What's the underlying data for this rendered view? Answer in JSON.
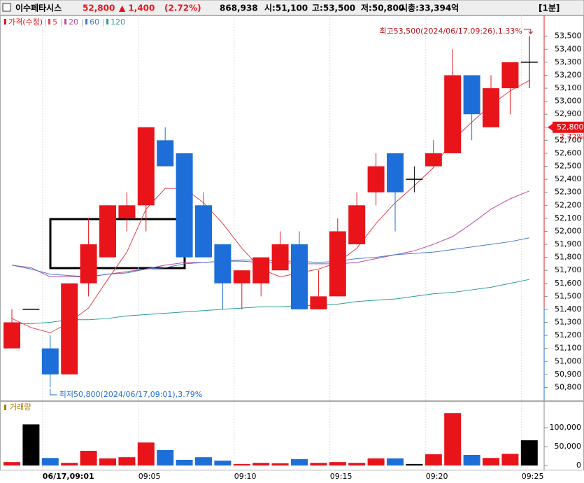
{
  "header": {
    "name": "이수페타시스",
    "price": "52,800",
    "change": "▲ 1,400",
    "change_pct": "(2.72%)",
    "volume": "868,938",
    "open": "시:51,100",
    "high": "고:53,500",
    "low": "저:50,800",
    "cap": "시총:33,394억",
    "interval": "[1분]"
  },
  "chart_data": [
    {
      "type": "candlestick",
      "name": "가격(수정)",
      "categories": [
        null,
        null,
        "06/17,09:01",
        null,
        null,
        null,
        null,
        "09:05",
        null,
        null,
        null,
        null,
        "09:10",
        null,
        null,
        null,
        null,
        "09:15",
        null,
        null,
        null,
        null,
        "09:20",
        null,
        null,
        null,
        null,
        "09:25"
      ],
      "open": [
        51100,
        51400,
        51100,
        50900,
        51600,
        51800,
        52100,
        52200,
        52700,
        52600,
        52200,
        51900,
        51600,
        51600,
        51700,
        51900,
        51400,
        51500,
        51900,
        52300,
        52600,
        52400,
        52500,
        52600,
        53200,
        52800,
        53100,
        53300
      ],
      "high": [
        51400,
        51400,
        51200,
        51600,
        52100,
        52200,
        52300,
        52800,
        52800,
        52600,
        52300,
        51900,
        51700,
        51800,
        52000,
        52000,
        51700,
        52100,
        52300,
        52600,
        52600,
        52500,
        52700,
        53400,
        53200,
        53200,
        53300,
        53500
      ],
      "low": [
        51100,
        51400,
        50800,
        50900,
        51500,
        51800,
        52000,
        52000,
        52500,
        51800,
        51800,
        51400,
        51400,
        51500,
        51700,
        51400,
        51400,
        51500,
        51900,
        52200,
        52000,
        52300,
        52500,
        52600,
        52700,
        52800,
        52900,
        53100
      ],
      "close": [
        51300,
        51400,
        50900,
        51600,
        51900,
        52200,
        52200,
        52800,
        52500,
        51800,
        51800,
        51600,
        51700,
        51800,
        51900,
        51400,
        51500,
        52000,
        52200,
        52500,
        52300,
        52400,
        52600,
        53200,
        52900,
        53100,
        53300,
        53300
      ],
      "up_color": "#e8141a",
      "down_color": "#1d6ed8",
      "flat_color": "#000000",
      "series": [
        {
          "name": "5",
          "color": "#e0404a",
          "values": [
            51330,
            51260,
            51220,
            51300,
            51410,
            51630,
            51840,
            52170,
            52330,
            52330,
            52220,
            52060,
            51870,
            51710,
            51650,
            51680,
            51710,
            51760,
            51870,
            52060,
            52220,
            52350,
            52490,
            52700,
            52840,
            52970,
            53080,
            53160
          ]
        },
        {
          "name": "20",
          "color": "#c04aa0",
          "values": [
            51740,
            51720,
            51650,
            51650,
            51650,
            51670,
            51690,
            51710,
            51740,
            51760,
            51760,
            51770,
            51770,
            51760,
            51760,
            51750,
            51750,
            51750,
            51760,
            51790,
            51820,
            51850,
            51900,
            51960,
            52060,
            52170,
            52250,
            52310
          ]
        },
        {
          "name": "60",
          "color": "#4a7ac8",
          "values": [
            51740,
            51710,
            51670,
            51660,
            51650,
            51670,
            51680,
            51710,
            51720,
            51750,
            51760,
            51770,
            51780,
            51780,
            51770,
            51770,
            51760,
            51770,
            51790,
            51800,
            51820,
            51830,
            51840,
            51860,
            51880,
            51900,
            51920,
            51950
          ]
        },
        {
          "name": "120",
          "color": "#2a9a9a",
          "values": [
            51290,
            51290,
            51300,
            51320,
            51320,
            51330,
            51350,
            51360,
            51370,
            51380,
            51390,
            51400,
            51410,
            51420,
            51420,
            51430,
            51430,
            51440,
            51460,
            51470,
            51480,
            51500,
            51520,
            51530,
            51550,
            51570,
            51600,
            51630
          ]
        }
      ],
      "annotations": [
        "최고53,500(2024/06/17,09:26),1.33%",
        "최저50,800(2024/06/17,09:01),3.79%"
      ],
      "price_marker": {
        "value": 52800,
        "label": "52,800",
        "change": "2.72%"
      },
      "ylim": [
        50700,
        53660
      ],
      "yticks": [
        {
          "value": 50800,
          "label": "50,800"
        },
        {
          "value": 50900,
          "label": "50,900"
        },
        {
          "value": 51000,
          "label": "51,000"
        },
        {
          "value": 51100,
          "label": "51,100"
        },
        {
          "value": 51200,
          "label": "51,200"
        },
        {
          "value": 51300,
          "label": "51,300"
        },
        {
          "value": 51400,
          "label": "51,400"
        },
        {
          "value": 51500,
          "label": "51,500"
        },
        {
          "value": 51600,
          "label": "51,600"
        },
        {
          "value": 51700,
          "label": "51,700"
        },
        {
          "value": 51800,
          "label": "51,800"
        },
        {
          "value": 51900,
          "label": "51,900"
        },
        {
          "value": 52000,
          "label": "52,000"
        },
        {
          "value": 52100,
          "label": "52,100"
        },
        {
          "value": 52200,
          "label": "52,200"
        },
        {
          "value": 52300,
          "label": "52,300"
        },
        {
          "value": 52400,
          "label": "52,400"
        },
        {
          "value": 52500,
          "label": "52,500"
        },
        {
          "value": 52600,
          "label": "52,600"
        },
        {
          "value": 52700,
          "label": "52,700"
        },
        {
          "value": 52800,
          "label": "52,800"
        },
        {
          "value": 52900,
          "label": "52,900"
        },
        {
          "value": 53000,
          "label": "53,000"
        },
        {
          "value": 53100,
          "label": "53,100"
        },
        {
          "value": 53200,
          "label": "53,200"
        },
        {
          "value": 53300,
          "label": "53,300"
        },
        {
          "value": 53400,
          "label": "53,400"
        },
        {
          "value": 53500,
          "label": "53,500"
        }
      ]
    },
    {
      "type": "bar",
      "title": "거래량",
      "values": [
        9000,
        109000,
        20000,
        7000,
        39000,
        19000,
        22000,
        61000,
        41000,
        15000,
        22000,
        13000,
        4000,
        7000,
        6000,
        17000,
        7000,
        9000,
        7000,
        19000,
        19000,
        4000,
        30000,
        139000,
        28000,
        20000,
        31000,
        67000
      ],
      "colors": [
        "#e8141a",
        "#000000",
        "#1d6ed8",
        "#e8141a",
        "#e8141a",
        "#e8141a",
        "#e8141a",
        "#e8141a",
        "#1d6ed8",
        "#1d6ed8",
        "#1d6ed8",
        "#1d6ed8",
        "#e8141a",
        "#e8141a",
        "#e8141a",
        "#1d6ed8",
        "#e8141a",
        "#e8141a",
        "#e8141a",
        "#e8141a",
        "#1d6ed8",
        "#000000",
        "#e8141a",
        "#e8141a",
        "#1d6ed8",
        "#e8141a",
        "#e8141a",
        "#000000"
      ],
      "ylim": [
        0,
        170000
      ],
      "yticks": [
        0,
        {
          "value": 50000,
          "label": "50,000"
        },
        {
          "value": 100000,
          "label": "100,000"
        }
      ]
    }
  ]
}
